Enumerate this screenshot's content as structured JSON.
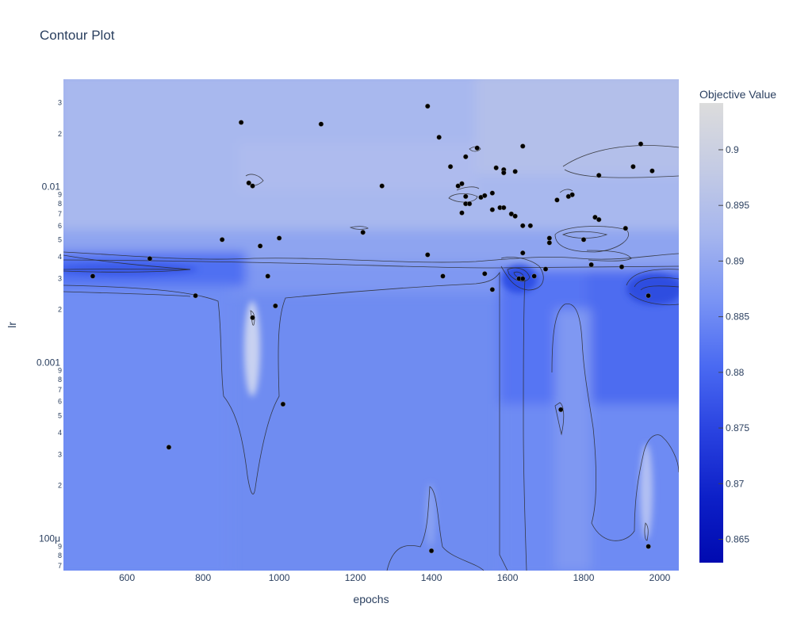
{
  "chart_data": {
    "type": "contour",
    "title": "Contour Plot",
    "xlabel": "epochs",
    "ylabel": "lr",
    "x_range": [
      433,
      2050
    ],
    "y_log_range": [
      -4.183,
      -1.389
    ],
    "x_ticks": [
      600,
      800,
      1000,
      1200,
      1400,
      1600,
      1800,
      2000
    ],
    "y_major_ticks": [
      {
        "value": 0.0001,
        "label": "100μ"
      },
      {
        "value": 0.001,
        "label": "0.001"
      },
      {
        "value": 0.01,
        "label": "0.01"
      }
    ],
    "y_minor_ticks": [
      {
        "value": 7e-05,
        "label": "7"
      },
      {
        "value": 8e-05,
        "label": "8"
      },
      {
        "value": 9e-05,
        "label": "9"
      },
      {
        "value": 0.0002,
        "label": "2"
      },
      {
        "value": 0.0003,
        "label": "3"
      },
      {
        "value": 0.0004,
        "label": "4"
      },
      {
        "value": 0.0005,
        "label": "5"
      },
      {
        "value": 0.0006,
        "label": "6"
      },
      {
        "value": 0.0007,
        "label": "7"
      },
      {
        "value": 0.0008,
        "label": "8"
      },
      {
        "value": 0.0009,
        "label": "9"
      },
      {
        "value": 0.002,
        "label": "2"
      },
      {
        "value": 0.003,
        "label": "3"
      },
      {
        "value": 0.004,
        "label": "4"
      },
      {
        "value": 0.005,
        "label": "5"
      },
      {
        "value": 0.006,
        "label": "6"
      },
      {
        "value": 0.007,
        "label": "7"
      },
      {
        "value": 0.008,
        "label": "8"
      },
      {
        "value": 0.009,
        "label": "9"
      },
      {
        "value": 0.02,
        "label": "2"
      },
      {
        "value": 0.03,
        "label": "3"
      }
    ],
    "colorbar": {
      "title": "Objective Value",
      "range": [
        0.8629,
        0.9042
      ],
      "ticks": [
        0.865,
        0.87,
        0.875,
        0.88,
        0.885,
        0.89,
        0.895,
        0.9
      ],
      "colorscale": [
        "#000ab0",
        "#0d20c8",
        "#2942e0",
        "#4a6af2",
        "#7a94f4",
        "#a6b6ee",
        "#c4cbe4",
        "#dcdcdc"
      ]
    },
    "points": [
      [
        900,
        0.0232
      ],
      [
        1110,
        0.0227
      ],
      [
        1390,
        0.0287
      ],
      [
        1420,
        0.0191
      ],
      [
        1490,
        0.0148
      ],
      [
        1520,
        0.0166
      ],
      [
        1640,
        0.017
      ],
      [
        1950,
        0.0175
      ],
      [
        1930,
        0.013
      ],
      [
        1980,
        0.0123
      ],
      [
        1450,
        0.013
      ],
      [
        1570,
        0.0128
      ],
      [
        1590,
        0.0125
      ],
      [
        1590,
        0.012
      ],
      [
        1620,
        0.0122
      ],
      [
        1840,
        0.0116
      ],
      [
        920,
        0.0105
      ],
      [
        930,
        0.0101
      ],
      [
        1270,
        0.0101
      ],
      [
        1470,
        0.0101
      ],
      [
        1480,
        0.0104
      ],
      [
        1560,
        0.0092
      ],
      [
        1490,
        0.0088
      ],
      [
        1530,
        0.0087
      ],
      [
        1540,
        0.0089
      ],
      [
        1770,
        0.009
      ],
      [
        1760,
        0.0088
      ],
      [
        1730,
        0.0084
      ],
      [
        1490,
        0.008
      ],
      [
        1500,
        0.008
      ],
      [
        1580,
        0.0076
      ],
      [
        1590,
        0.0076
      ],
      [
        1560,
        0.0074
      ],
      [
        1610,
        0.007
      ],
      [
        1620,
        0.0068
      ],
      [
        1480,
        0.0071
      ],
      [
        1830,
        0.0067
      ],
      [
        1840,
        0.0065
      ],
      [
        1640,
        0.006
      ],
      [
        1660,
        0.006
      ],
      [
        1910,
        0.0058
      ],
      [
        1220,
        0.0055
      ],
      [
        1710,
        0.0051
      ],
      [
        1710,
        0.0048
      ],
      [
        1800,
        0.005
      ],
      [
        850,
        0.005
      ],
      [
        1000,
        0.0051
      ],
      [
        950,
        0.0046
      ],
      [
        1390,
        0.0041
      ],
      [
        1640,
        0.0042
      ],
      [
        660,
        0.0039
      ],
      [
        1820,
        0.0036
      ],
      [
        1900,
        0.0035
      ],
      [
        1700,
        0.0034
      ],
      [
        1540,
        0.0032
      ],
      [
        1670,
        0.0031
      ],
      [
        1430,
        0.0031
      ],
      [
        510,
        0.0031
      ],
      [
        970,
        0.0031
      ],
      [
        1630,
        0.003
      ],
      [
        1640,
        0.003
      ],
      [
        1560,
        0.0026
      ],
      [
        1970,
        0.0024
      ],
      [
        780,
        0.0024
      ],
      [
        990,
        0.0021
      ],
      [
        930,
        0.0018
      ],
      [
        1010,
        0.00058
      ],
      [
        1740,
        0.00054
      ],
      [
        710,
        0.00033
      ],
      [
        1970,
        9e-05
      ],
      [
        1400,
        8.5e-05
      ]
    ]
  }
}
